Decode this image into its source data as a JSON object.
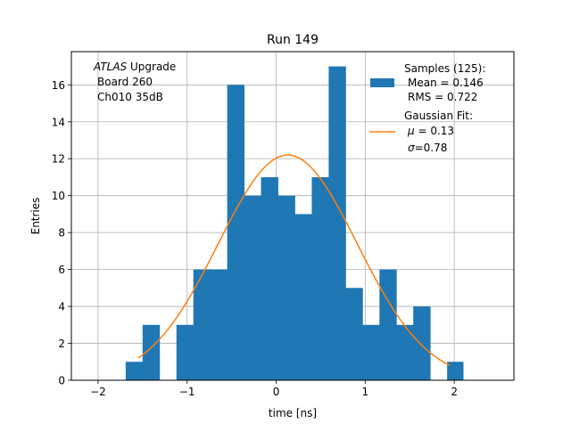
{
  "chart_data": {
    "type": "bar",
    "title": "Run 149",
    "xlabel": "time [ns]",
    "ylabel": "Entries",
    "xlim": [
      -2.3,
      2.67
    ],
    "ylim": [
      0,
      17.8
    ],
    "xticks": [
      -2,
      -1,
      0,
      1,
      2
    ],
    "xtick_labels": [
      "−2",
      "−1",
      "0",
      "1",
      "2"
    ],
    "yticks": [
      0,
      2,
      4,
      6,
      8,
      10,
      12,
      14,
      16
    ],
    "grid": true,
    "annotation": {
      "line1_italic": "ATLAS",
      "line1_rest": " Upgrade",
      "line2": "Board 260",
      "line3": "Ch010 35dB"
    },
    "histogram": {
      "bin_edges": [
        -1.69,
        -1.5,
        -1.31,
        -1.12,
        -0.93,
        -0.74,
        -0.55,
        -0.36,
        -0.17,
        0.02,
        0.21,
        0.4,
        0.59,
        0.78,
        0.97,
        1.16,
        1.35,
        1.54,
        1.73,
        1.92,
        2.1
      ],
      "counts": [
        1,
        3,
        0,
        3,
        6,
        6,
        16,
        10,
        11,
        10,
        9,
        11,
        17,
        5,
        3,
        6,
        3,
        4,
        0,
        1
      ],
      "color": "#1f77b4"
    },
    "fit": {
      "amplitude": 12.2,
      "mu": 0.13,
      "sigma": 0.78,
      "x_range": [
        -1.55,
        1.95
      ],
      "color": "#ff7f0e"
    },
    "legend": {
      "placement": "top-right",
      "samples_header": "Samples (125):",
      "samples_mean": "Mean = 0.146",
      "samples_rms": "RMS = 0.722",
      "fit_header": "Gaussian Fit:",
      "fit_mu_symbol": "μ",
      "fit_mu_value": " = 0.13",
      "fit_sigma_symbol": "σ",
      "fit_sigma_value": "=0.78"
    }
  }
}
